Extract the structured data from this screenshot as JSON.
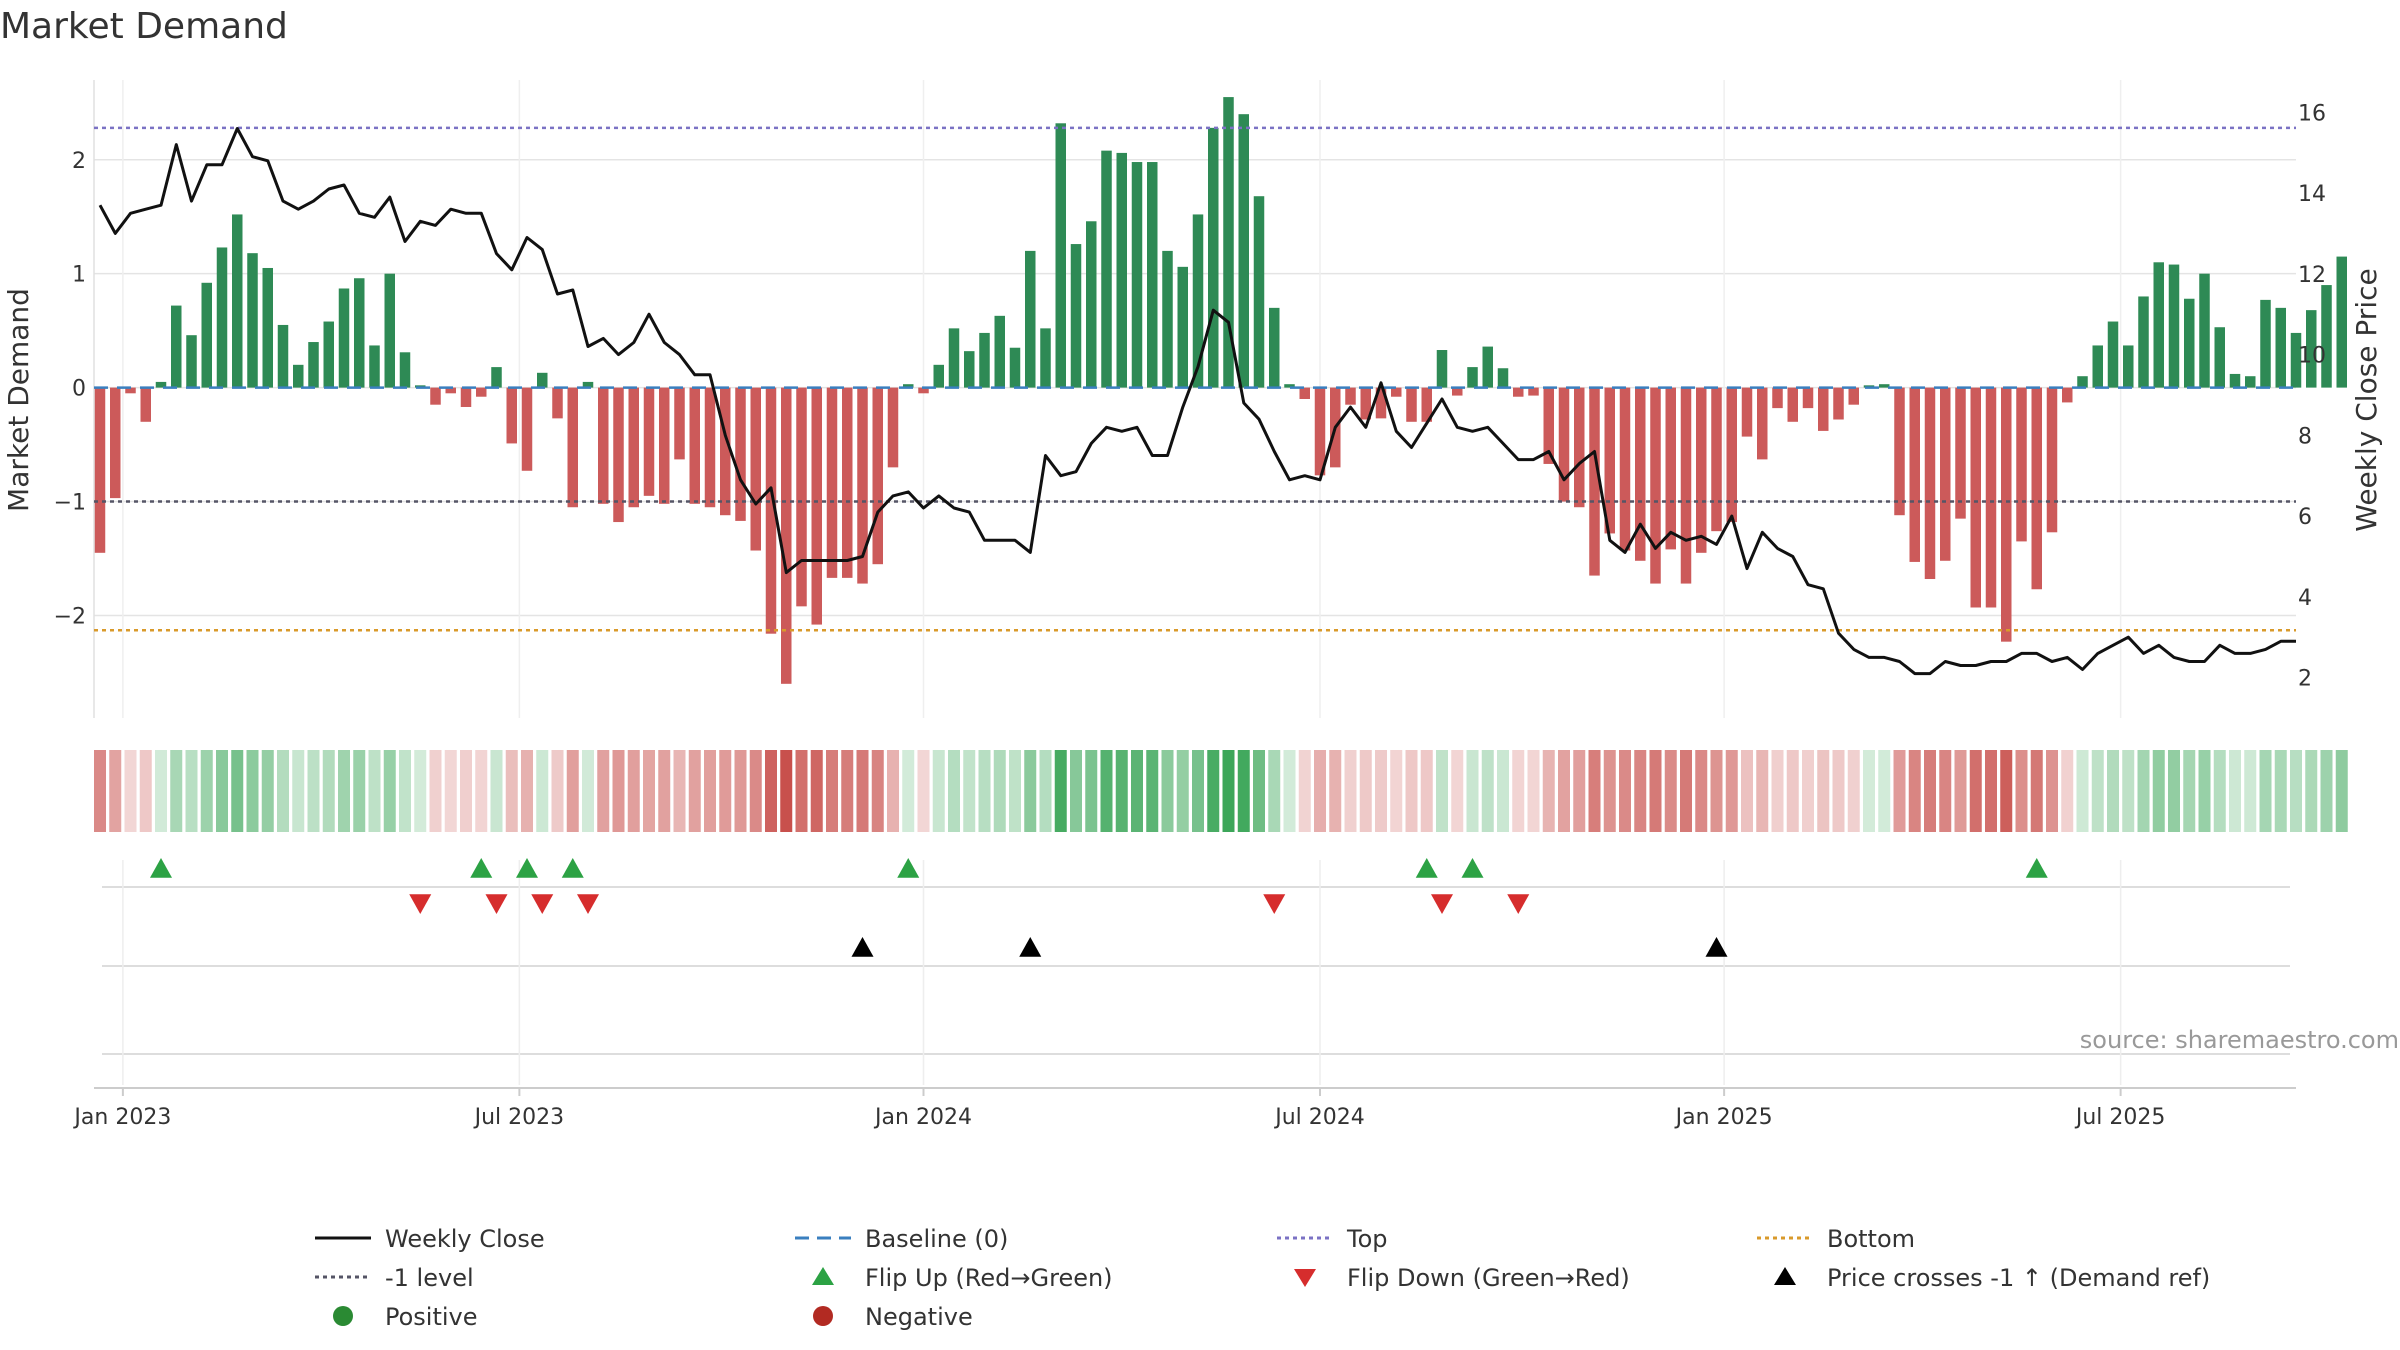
{
  "chart_data": {
    "type": "bar+line",
    "title": "Market Demand",
    "ylabel_left": "Market Demand",
    "ylabel_right": "Weekly Close Price",
    "ylim_left": [
      -2.9,
      2.7
    ],
    "yticks_left": [
      2,
      1,
      0,
      -1,
      -2
    ],
    "ytick_labels_left": [
      "2",
      "1",
      "0",
      "−1",
      "−2"
    ],
    "ylim_right": [
      1.0,
      16.8
    ],
    "yticks_right": [
      16,
      14,
      12,
      10,
      8,
      6,
      4,
      2
    ],
    "ytick_labels_right": [
      "16",
      "14",
      "12",
      "10",
      "8",
      "6",
      "4",
      "2"
    ],
    "start_week": 0,
    "weeks": 145,
    "xticks": [
      {
        "week": 1.5,
        "label": "Jan 2023"
      },
      {
        "week": 27.5,
        "label": "Jul 2023"
      },
      {
        "week": 54,
        "label": "Jan 2024"
      },
      {
        "week": 80,
        "label": "Jul 2024"
      },
      {
        "week": 106.5,
        "label": "Jan 2025"
      },
      {
        "week": 132.5,
        "label": "Jul 2025"
      }
    ],
    "reference_lines": {
      "top": 2.28,
      "minus_one": -1.0,
      "bottom": -2.13,
      "baseline": 0
    },
    "demand": [
      -1.45,
      -0.97,
      -0.05,
      -0.3,
      0.05,
      0.72,
      0.46,
      0.92,
      1.23,
      1.52,
      1.18,
      1.05,
      0.55,
      0.2,
      0.4,
      0.58,
      0.87,
      0.96,
      0.37,
      1.0,
      0.31,
      0.02,
      -0.15,
      -0.05,
      -0.17,
      -0.08,
      0.18,
      -0.49,
      -0.73,
      0.13,
      -0.27,
      -1.05,
      0.05,
      -1.02,
      -1.18,
      -1.05,
      -0.95,
      -1.02,
      -0.63,
      -1.02,
      -1.05,
      -1.12,
      -1.17,
      -1.43,
      -2.16,
      -2.6,
      -1.92,
      -2.08,
      -1.67,
      -1.67,
      -1.72,
      -1.55,
      -0.7,
      0.03,
      -0.05,
      0.2,
      0.52,
      0.32,
      0.48,
      0.63,
      0.35,
      1.2,
      0.52,
      2.32,
      1.26,
      1.46,
      2.08,
      2.06,
      1.98,
      1.98,
      1.2,
      1.06,
      1.52,
      2.28,
      2.55,
      2.4,
      1.68,
      0.7,
      0.03,
      -0.1,
      -0.77,
      -0.7,
      -0.15,
      -0.28,
      -0.27,
      -0.08,
      -0.3,
      -0.3,
      0.33,
      -0.07,
      0.18,
      0.36,
      0.17,
      -0.08,
      -0.07,
      -0.67,
      -1.0,
      -1.05,
      -1.65,
      -1.28,
      -1.43,
      -1.52,
      -1.72,
      -1.42,
      -1.72,
      -1.45,
      -1.26,
      -1.18,
      -0.43,
      -0.63,
      -0.18,
      -0.3,
      -0.18,
      -0.38,
      -0.28,
      -0.15,
      0.02,
      0.03,
      -1.12,
      -1.53,
      -1.68,
      -1.52,
      -1.15,
      -1.93,
      -1.93,
      -2.23,
      -1.35,
      -1.77,
      -1.27,
      -0.13,
      0.1,
      0.37,
      0.58,
      0.37,
      0.8,
      1.1,
      1.08,
      0.78,
      1.0,
      0.53,
      0.12,
      0.1,
      0.77,
      0.7,
      0.48,
      0.68,
      0.9,
      1.15
    ],
    "weekly_close": [
      13.7,
      13.0,
      13.5,
      13.6,
      13.7,
      15.2,
      13.8,
      14.7,
      14.7,
      15.6,
      14.9,
      14.8,
      13.8,
      13.6,
      13.8,
      14.1,
      14.2,
      13.5,
      13.4,
      13.9,
      12.8,
      13.3,
      13.2,
      13.6,
      13.5,
      13.5,
      12.5,
      12.1,
      12.9,
      12.6,
      11.5,
      11.6,
      10.2,
      10.4,
      10.0,
      10.3,
      11.0,
      10.3,
      10.0,
      9.5,
      9.5,
      8.0,
      6.9,
      6.3,
      6.7,
      4.6,
      4.9,
      4.9,
      4.9,
      4.9,
      5.0,
      6.1,
      6.5,
      6.6,
      6.2,
      6.5,
      6.2,
      6.1,
      5.4,
      5.4,
      5.4,
      5.1,
      7.5,
      7.0,
      7.1,
      7.8,
      8.2,
      8.1,
      8.2,
      7.5,
      7.5,
      8.7,
      9.7,
      11.1,
      10.8,
      8.8,
      8.4,
      7.6,
      6.9,
      7.0,
      6.9,
      8.2,
      8.7,
      8.2,
      9.3,
      8.1,
      7.7,
      8.3,
      8.9,
      8.2,
      8.1,
      8.2,
      7.8,
      7.4,
      7.4,
      7.6,
      6.9,
      7.3,
      7.6,
      5.4,
      5.1,
      5.8,
      5.2,
      5.6,
      5.4,
      5.5,
      5.3,
      6.0,
      4.7,
      5.6,
      5.2,
      5.0,
      4.3,
      4.2,
      3.1,
      2.7,
      2.5,
      2.5,
      2.4,
      2.1,
      2.1,
      2.4,
      2.3,
      2.3,
      2.4,
      2.4,
      2.6,
      2.6,
      2.4,
      2.5,
      2.2,
      2.6,
      2.8,
      3.0,
      2.6,
      2.8,
      2.5,
      2.4,
      2.4,
      2.8,
      2.6,
      2.6,
      2.7,
      2.9,
      2.9
    ],
    "heatstrip": {
      "positive_color": "#3ca659",
      "negative_color": "#c8504c"
    },
    "flip_up_weeks": [
      4,
      25,
      28,
      31,
      53,
      87,
      90,
      127
    ],
    "flip_down_weeks": [
      21,
      26,
      29,
      32,
      77,
      88,
      93
    ],
    "price_cross_weeks": [
      50,
      61,
      106
    ],
    "source": "source: sharemaestro.com",
    "legend": [
      {
        "label": "Weekly Close",
        "symbol": "line",
        "color": "#111111"
      },
      {
        "label": "Baseline (0)",
        "symbol": "dash",
        "color": "#3a7fbf"
      },
      {
        "label": "Top",
        "symbol": "dot",
        "color": "#7b72c4"
      },
      {
        "label": "Bottom",
        "symbol": "dot",
        "color": "#d99a2b"
      },
      {
        "label": "-1 level",
        "symbol": "dot",
        "color": "#555566"
      },
      {
        "label": "Flip Up (Red→Green)",
        "symbol": "tri-up",
        "color": "#2ca244"
      },
      {
        "label": "Flip Down (Green→Red)",
        "symbol": "tri-down",
        "color": "#d62d2d"
      },
      {
        "label": "Price crosses -1 ↑ (Demand ref)",
        "symbol": "tri-up",
        "color": "#000000"
      },
      {
        "label": "Positive",
        "symbol": "circle",
        "color": "#2a8a33"
      },
      {
        "label": "Negative",
        "symbol": "circle",
        "color": "#b22a22"
      }
    ],
    "colors": {
      "positive_bar": "#2e8a55",
      "negative_bar": "#cc5a5a",
      "close_line": "#111111",
      "grid": "#e4e4e4"
    }
  }
}
